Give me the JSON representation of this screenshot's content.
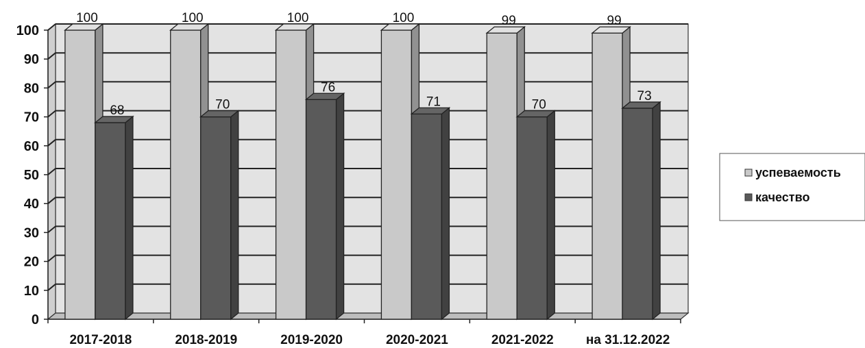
{
  "chart_data": {
    "type": "bar",
    "categories": [
      "2017-2018",
      "2018-2019",
      "2019-2020",
      "2020-2021",
      "2021-2022",
      "на 31.12.2022"
    ],
    "series": [
      {
        "name": "успеваемость",
        "values": [
          100,
          100,
          100,
          100,
          99,
          99
        ],
        "color": "#c9c9c9"
      },
      {
        "name": "качество",
        "values": [
          68,
          70,
          76,
          71,
          70,
          73
        ],
        "color": "#5a5a5a"
      }
    ],
    "ylim": [
      0,
      100
    ],
    "yticks": [
      "0",
      "10",
      "20",
      "30",
      "40",
      "50",
      "60",
      "70",
      "80",
      "90",
      "100"
    ],
    "grid": true,
    "legend_position": "right",
    "three_d": true,
    "title": "",
    "xlabel": "",
    "ylabel": ""
  }
}
